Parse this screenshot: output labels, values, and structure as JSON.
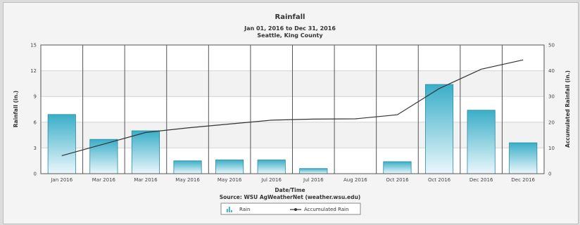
{
  "chart_data": {
    "type": "bar",
    "title": "Rainfall",
    "subtitle_lines": [
      "Jan 01, 2016 to Dec 31, 2016",
      "Seattle, King County"
    ],
    "xlabel": "Date/Time",
    "source": "Source: WSU AgWeatherNet (weather.wsu.edu)",
    "ylabel_left": "Rainfall (in.)",
    "ylabel_right": "Accumulated Rainfall (in.)",
    "ylim_left": [
      0,
      15
    ],
    "ylim_right": [
      0,
      50
    ],
    "yticks_left": [
      "0",
      "3",
      "6",
      "9",
      "12",
      "15"
    ],
    "yticks_right": [
      "0",
      "10",
      "20",
      "30",
      "40",
      "50"
    ],
    "categories": [
      "Jan 2016",
      "Mar 2016",
      "Mar 2016",
      "May 2016",
      "May 2016",
      "Jul 2016",
      "Jul 2016",
      "Aug 2016",
      "Oct 2016",
      "Oct 2016",
      "Dec 2016",
      "Dec 2016"
    ],
    "series": [
      {
        "name": "Rain",
        "type": "bar",
        "axis": "left",
        "color": "#3aaec8",
        "values": [
          6.9,
          4.0,
          5.0,
          1.5,
          1.6,
          1.6,
          0.6,
          0.0,
          1.4,
          10.4,
          7.4,
          3.6
        ]
      },
      {
        "name": "Accumulated Rain",
        "type": "line",
        "axis": "right",
        "color": "#333333",
        "values": [
          7.0,
          11.5,
          16.0,
          17.8,
          19.3,
          20.8,
          21.2,
          21.3,
          22.9,
          33.1,
          40.6,
          44.2
        ]
      }
    ],
    "legend_position": "bottom",
    "grid": true
  }
}
